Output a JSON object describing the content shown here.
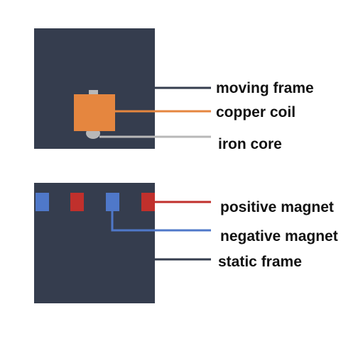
{
  "labels": {
    "moving_frame": "moving frame",
    "copper_coil": "copper coil",
    "iron_core": "iron core",
    "positive_magnet": "positive magnet",
    "negative_magnet": "negative magnet",
    "static_frame": "static frame"
  },
  "colors": {
    "frame": "#353d4e",
    "copper": "#e5863f",
    "iron": "#b8b8b8",
    "positive": "#c0302c",
    "negative": "#4f78c9",
    "text": "#111111"
  }
}
